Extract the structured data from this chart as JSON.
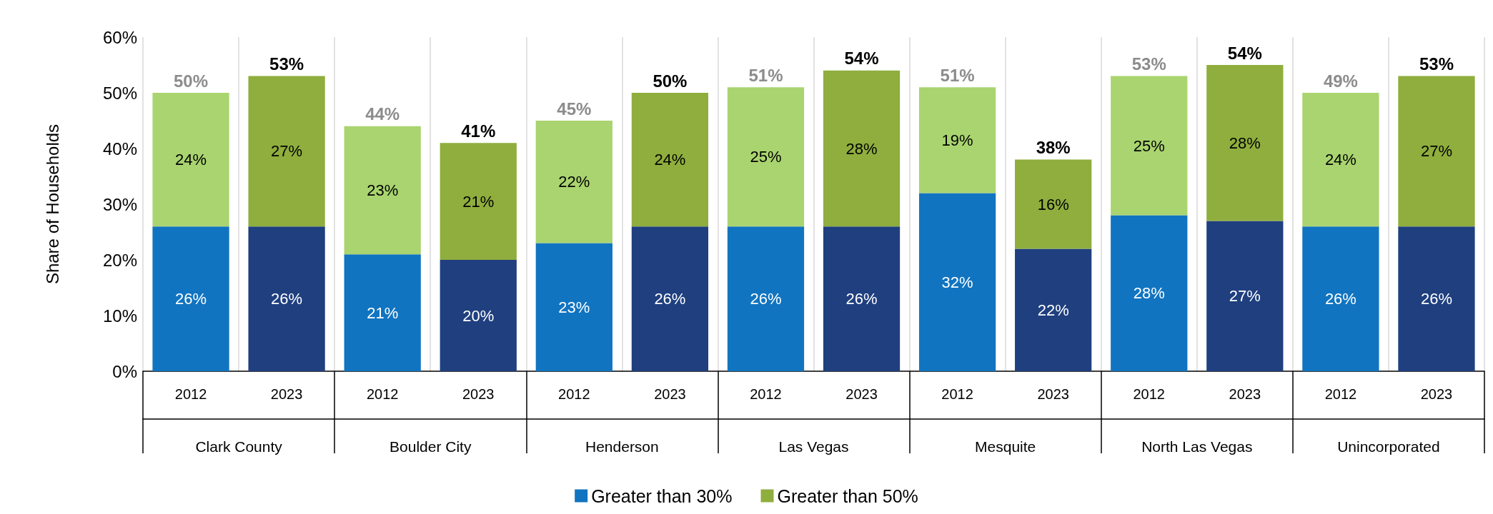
{
  "chart_data": {
    "type": "bar",
    "stacked": true,
    "ylabel": "Share of Households",
    "categories": [
      "2012",
      "2023",
      "2012",
      "2023",
      "2012",
      "2023",
      "2012",
      "2023",
      "2012",
      "2023",
      "2012",
      "2023",
      "2012",
      "2023"
    ],
    "annotations": [
      "Clark County",
      "Boulder City",
      "Henderson",
      "Las Vegas",
      "Mesquite",
      "North Las Vegas",
      "Unincorporated"
    ],
    "series": [
      {
        "name": "Greater than 30%",
        "color": "#1174c0",
        "colors": [
          "#1174c0",
          "#1f3f7f",
          "#1174c0",
          "#1f3f7f",
          "#1174c0",
          "#1f3f7f",
          "#1174c0",
          "#1f3f7f",
          "#1174c0",
          "#1f3f7f",
          "#1174c0",
          "#1f3f7f",
          "#1174c0",
          "#1f3f7f"
        ],
        "values": [
          26,
          26,
          21,
          20,
          23,
          26,
          26,
          26,
          32,
          22,
          28,
          27,
          26,
          26
        ],
        "value_labels": [
          "26%",
          "26%",
          "21%",
          "20%",
          "23%",
          "26%",
          "26%",
          "26%",
          "32%",
          "22%",
          "28%",
          "27%",
          "26%",
          "26%"
        ]
      },
      {
        "name": "Greater than 50%",
        "color": "#8fae3d",
        "colors": [
          "#a9d46f",
          "#8fae3d",
          "#a9d46f",
          "#8fae3d",
          "#a9d46f",
          "#8fae3d",
          "#a9d46f",
          "#8fae3d",
          "#a9d46f",
          "#8fae3d",
          "#a9d46f",
          "#8fae3d",
          "#a9d46f",
          "#8fae3d"
        ],
        "values": [
          24,
          27,
          23,
          21,
          22,
          24,
          25,
          28,
          19,
          16,
          25,
          28,
          24,
          27
        ],
        "value_labels": [
          "24%",
          "27%",
          "23%",
          "21%",
          "22%",
          "24%",
          "25%",
          "28%",
          "19%",
          "16%",
          "25%",
          "28%",
          "24%",
          "27%"
        ]
      }
    ],
    "totals": [
      "50%",
      "53%",
      "44%",
      "41%",
      "45%",
      "50%",
      "51%",
      "54%",
      "51%",
      "38%",
      "53%",
      "54%",
      "49%",
      "53%"
    ],
    "ylim": [
      0,
      60
    ],
    "yticks": [
      {
        "value": 0,
        "label": "0%"
      },
      {
        "value": 10,
        "label": "10%"
      },
      {
        "value": 20,
        "label": "20%"
      },
      {
        "value": 30,
        "label": "30%"
      },
      {
        "value": 40,
        "label": "40%"
      },
      {
        "value": 50,
        "label": "50%"
      },
      {
        "value": 60,
        "label": "60%"
      }
    ],
    "grid": "x",
    "legend": "bottom"
  }
}
